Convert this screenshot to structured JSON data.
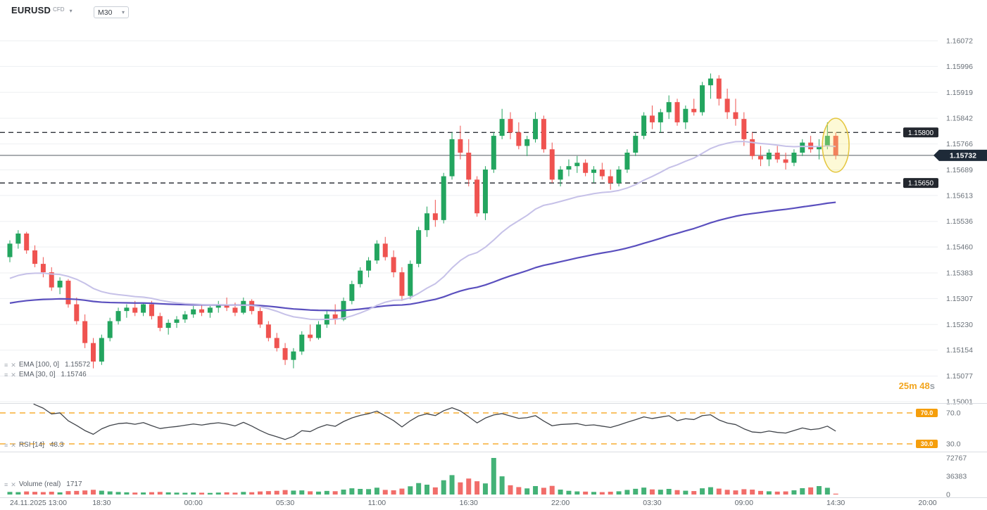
{
  "header": {
    "symbol": "EURUSD",
    "badge": "CFD",
    "timeframe": "M30"
  },
  "icons": {
    "chevron_down": "▾",
    "menu": "≡",
    "close": "✕"
  },
  "legends": {
    "ema_slow": {
      "label": "EMA [100, 0]",
      "value": "1.15572"
    },
    "ema_fast": {
      "label": "EMA [30, 0]",
      "value": "1.15746"
    },
    "rsi": {
      "label": "RSI [14]",
      "value": "48.3"
    },
    "volume": {
      "label": "Volume (real)",
      "value": "1717"
    }
  },
  "timer": {
    "value": "25m 48",
    "unit": "s"
  },
  "colors": {
    "bull": "#23a55f",
    "bear": "#ef5350",
    "ema_fast": "#c6c1e8",
    "ema_slow": "#5a4fbe",
    "level": "#30343b",
    "level_badge_bg": "#23272e",
    "current_line": "#555b63",
    "current_badge_bg": "#1e2a38",
    "rsi_line": "#40444a",
    "rsi_band": "#f59e0b",
    "grid": "#edeff2",
    "axis_text": "#6a7179",
    "highlight_stroke": "#e4c63f",
    "highlight_fill": "rgba(250,235,120,0.3)"
  },
  "chart_data": {
    "type": "candlestick",
    "symbol": "EURUSD",
    "timeframe": "M30",
    "price_axis_ticks": [
      "1.16072",
      "1.15996",
      "1.15919",
      "1.15842",
      "1.15766",
      "1.15689",
      "1.15613",
      "1.15536",
      "1.15460",
      "1.15383",
      "1.15307",
      "1.15230",
      "1.15154",
      "1.15077",
      "1.15001"
    ],
    "time_axis": [
      {
        "label": "24.11.2025 13:00",
        "index": 0
      },
      {
        "label": "18:30",
        "index": 11
      },
      {
        "label": "00:00",
        "index": 22
      },
      {
        "label": "05:30",
        "index": 33
      },
      {
        "label": "11:00",
        "index": 44
      },
      {
        "label": "16:30",
        "index": 55
      },
      {
        "label": "22:00",
        "index": 66
      },
      {
        "label": "03:30",
        "index": 77
      },
      {
        "label": "09:00",
        "index": 88
      },
      {
        "label": "14:30",
        "index": 99
      },
      {
        "label": "20:00",
        "index": 110
      }
    ],
    "levels": [
      {
        "price": 1.158,
        "label": "1.15800"
      },
      {
        "price": 1.1565,
        "label": "1.15650"
      }
    ],
    "current_price": {
      "price": 1.15732,
      "label": "1.15732"
    },
    "indicators": {
      "ema_fast": {
        "period": 30,
        "left_edge_value": 1.1536,
        "displayed_value": "1.15746"
      },
      "ema_slow": {
        "period": 100,
        "left_edge_value": 1.1529,
        "displayed_value": "1.15572"
      },
      "rsi": {
        "period": 14,
        "displayed_value": "48.3",
        "bands": [
          70.0,
          30.0
        ],
        "band_labels": [
          "70.0",
          "30.0"
        ]
      }
    },
    "volume_axis_ticks": [
      "72767",
      "36383",
      "0"
    ],
    "volume_max": 72767,
    "current_volume": 1717,
    "highlight": {
      "center_index": 99,
      "center_price": 1.15762,
      "price_radius": 0.0008,
      "index_radius": 1.6
    },
    "candles": [
      [
        1.1543,
        1.1548,
        1.15415,
        1.1547
      ],
      [
        1.1547,
        1.1551,
        1.15455,
        1.155
      ],
      [
        1.155,
        1.15505,
        1.1544,
        1.1545
      ],
      [
        1.1545,
        1.15465,
        1.154,
        1.1541
      ],
      [
        1.1541,
        1.1543,
        1.1537,
        1.15385
      ],
      [
        1.15385,
        1.154,
        1.1533,
        1.1534
      ],
      [
        1.1534,
        1.1537,
        1.1532,
        1.1536
      ],
      [
        1.1536,
        1.15365,
        1.1528,
        1.1529
      ],
      [
        1.1529,
        1.1531,
        1.1523,
        1.1524
      ],
      [
        1.1524,
        1.1526,
        1.1516,
        1.15175
      ],
      [
        1.15175,
        1.1519,
        1.151,
        1.1512
      ],
      [
        1.1512,
        1.152,
        1.1511,
        1.1519
      ],
      [
        1.1519,
        1.1525,
        1.1518,
        1.1524
      ],
      [
        1.1524,
        1.1528,
        1.1523,
        1.1527
      ],
      [
        1.1527,
        1.1529,
        1.1525,
        1.1528
      ],
      [
        1.1528,
        1.153,
        1.15255,
        1.15265
      ],
      [
        1.15265,
        1.15295,
        1.15255,
        1.1529
      ],
      [
        1.1529,
        1.153,
        1.15245,
        1.15255
      ],
      [
        1.15255,
        1.15265,
        1.1521,
        1.1522
      ],
      [
        1.1522,
        1.15245,
        1.152,
        1.15235
      ],
      [
        1.15235,
        1.15255,
        1.1522,
        1.15245
      ],
      [
        1.15245,
        1.1527,
        1.15235,
        1.1526
      ],
      [
        1.1526,
        1.15285,
        1.1525,
        1.15275
      ],
      [
        1.15275,
        1.1529,
        1.15255,
        1.15265
      ],
      [
        1.15265,
        1.15285,
        1.1525,
        1.1528
      ],
      [
        1.1528,
        1.153,
        1.15265,
        1.1529
      ],
      [
        1.1529,
        1.1531,
        1.1527,
        1.1528
      ],
      [
        1.1528,
        1.15295,
        1.15255,
        1.15265
      ],
      [
        1.15265,
        1.1531,
        1.1526,
        1.153
      ],
      [
        1.153,
        1.15305,
        1.1526,
        1.1527
      ],
      [
        1.1527,
        1.1528,
        1.1522,
        1.1523
      ],
      [
        1.1523,
        1.1524,
        1.1518,
        1.1519
      ],
      [
        1.1519,
        1.15205,
        1.1515,
        1.1516
      ],
      [
        1.1516,
        1.15175,
        1.1511,
        1.15125
      ],
      [
        1.15125,
        1.1516,
        1.151,
        1.1515
      ],
      [
        1.1515,
        1.1521,
        1.1514,
        1.152
      ],
      [
        1.152,
        1.1523,
        1.1518,
        1.1519
      ],
      [
        1.1519,
        1.1524,
        1.15185,
        1.1523
      ],
      [
        1.1523,
        1.1527,
        1.1522,
        1.1526
      ],
      [
        1.1526,
        1.1529,
        1.1523,
        1.15245
      ],
      [
        1.15245,
        1.1531,
        1.1524,
        1.153
      ],
      [
        1.153,
        1.1536,
        1.1529,
        1.1535
      ],
      [
        1.1535,
        1.154,
        1.1534,
        1.1539
      ],
      [
        1.1539,
        1.1543,
        1.1537,
        1.1542
      ],
      [
        1.1542,
        1.1548,
        1.1541,
        1.1547
      ],
      [
        1.1547,
        1.1549,
        1.1542,
        1.1543
      ],
      [
        1.1543,
        1.1545,
        1.1537,
        1.15385
      ],
      [
        1.15385,
        1.154,
        1.153,
        1.15315
      ],
      [
        1.15315,
        1.1542,
        1.15305,
        1.1541
      ],
      [
        1.1541,
        1.1552,
        1.154,
        1.1551
      ],
      [
        1.1551,
        1.1558,
        1.1549,
        1.1556
      ],
      [
        1.1556,
        1.156,
        1.1552,
        1.1554
      ],
      [
        1.1554,
        1.1568,
        1.1553,
        1.1567
      ],
      [
        1.1567,
        1.158,
        1.1566,
        1.1578
      ],
      [
        1.1578,
        1.1582,
        1.1572,
        1.1574
      ],
      [
        1.1574,
        1.1578,
        1.1564,
        1.1566
      ],
      [
        1.1566,
        1.1567,
        1.1555,
        1.1556
      ],
      [
        1.1556,
        1.157,
        1.1554,
        1.1569
      ],
      [
        1.1569,
        1.158,
        1.1568,
        1.1579
      ],
      [
        1.1579,
        1.1587,
        1.1578,
        1.1584
      ],
      [
        1.1584,
        1.1586,
        1.1578,
        1.158
      ],
      [
        1.158,
        1.1583,
        1.1575,
        1.1576
      ],
      [
        1.1576,
        1.1579,
        1.1573,
        1.1578
      ],
      [
        1.1578,
        1.1586,
        1.1577,
        1.1584
      ],
      [
        1.1584,
        1.1585,
        1.1574,
        1.1575
      ],
      [
        1.1575,
        1.1577,
        1.1565,
        1.1566
      ],
      [
        1.1566,
        1.157,
        1.1564,
        1.1569
      ],
      [
        1.1569,
        1.1572,
        1.1567,
        1.157
      ],
      [
        1.157,
        1.1573,
        1.1568,
        1.1571
      ],
      [
        1.1571,
        1.1572,
        1.1567,
        1.1568
      ],
      [
        1.1568,
        1.157,
        1.1565,
        1.1569
      ],
      [
        1.1569,
        1.1571,
        1.1566,
        1.1567
      ],
      [
        1.1567,
        1.1569,
        1.1563,
        1.1565
      ],
      [
        1.1565,
        1.157,
        1.1564,
        1.1569
      ],
      [
        1.1569,
        1.1575,
        1.1568,
        1.1574
      ],
      [
        1.1574,
        1.158,
        1.1573,
        1.1579
      ],
      [
        1.1579,
        1.1586,
        1.1578,
        1.1585
      ],
      [
        1.1585,
        1.1588,
        1.1581,
        1.1583
      ],
      [
        1.1583,
        1.1587,
        1.158,
        1.1586
      ],
      [
        1.1586,
        1.1591,
        1.1584,
        1.1589
      ],
      [
        1.1589,
        1.159,
        1.1582,
        1.1583
      ],
      [
        1.1583,
        1.1588,
        1.1581,
        1.1587
      ],
      [
        1.1587,
        1.159,
        1.1585,
        1.1586
      ],
      [
        1.1586,
        1.1595,
        1.1585,
        1.1594
      ],
      [
        1.1594,
        1.15975,
        1.159,
        1.1596
      ],
      [
        1.1596,
        1.1597,
        1.1588,
        1.159
      ],
      [
        1.159,
        1.1593,
        1.1584,
        1.1586
      ],
      [
        1.1586,
        1.159,
        1.1582,
        1.1584
      ],
      [
        1.1584,
        1.1586,
        1.1576,
        1.1578
      ],
      [
        1.1578,
        1.158,
        1.1572,
        1.1573
      ],
      [
        1.1573,
        1.1576,
        1.157,
        1.1572
      ],
      [
        1.1572,
        1.1575,
        1.157,
        1.1574
      ],
      [
        1.1574,
        1.1576,
        1.1571,
        1.1572
      ],
      [
        1.1572,
        1.1574,
        1.1569,
        1.1571
      ],
      [
        1.1571,
        1.1575,
        1.157,
        1.1574
      ],
      [
        1.1574,
        1.1578,
        1.1573,
        1.1577
      ],
      [
        1.1577,
        1.1579,
        1.1574,
        1.1575
      ],
      [
        1.1575,
        1.1578,
        1.1572,
        1.1576
      ],
      [
        1.1576,
        1.1583,
        1.1575,
        1.1579
      ],
      [
        1.1579,
        1.158,
        1.1572,
        1.15732
      ]
    ],
    "volumes": [
      5200,
      4800,
      6100,
      5400,
      4900,
      5600,
      4300,
      6800,
      7200,
      8100,
      9400,
      7600,
      6200,
      5100,
      4400,
      3900,
      4100,
      4700,
      5200,
      4300,
      3800,
      3500,
      4100,
      3600,
      3200,
      3900,
      4400,
      3700,
      5200,
      4600,
      6100,
      6800,
      7400,
      8900,
      7800,
      8200,
      6400,
      5800,
      7200,
      6600,
      9800,
      12400,
      11200,
      10800,
      13600,
      9200,
      8400,
      11800,
      16400,
      22800,
      19600,
      14200,
      28400,
      38600,
      24200,
      31800,
      26400,
      22100,
      72767,
      36200,
      18400,
      14800,
      12200,
      16800,
      13400,
      17200,
      9800,
      7400,
      6200,
      5800,
      5200,
      4800,
      5600,
      6400,
      9200,
      11400,
      13800,
      10200,
      9600,
      11200,
      8800,
      7600,
      6900,
      12400,
      14600,
      11800,
      9400,
      8200,
      10600,
      9800,
      7200,
      6400,
      5800,
      6200,
      8400,
      12600,
      14200,
      16800,
      13400,
      1717
    ]
  }
}
